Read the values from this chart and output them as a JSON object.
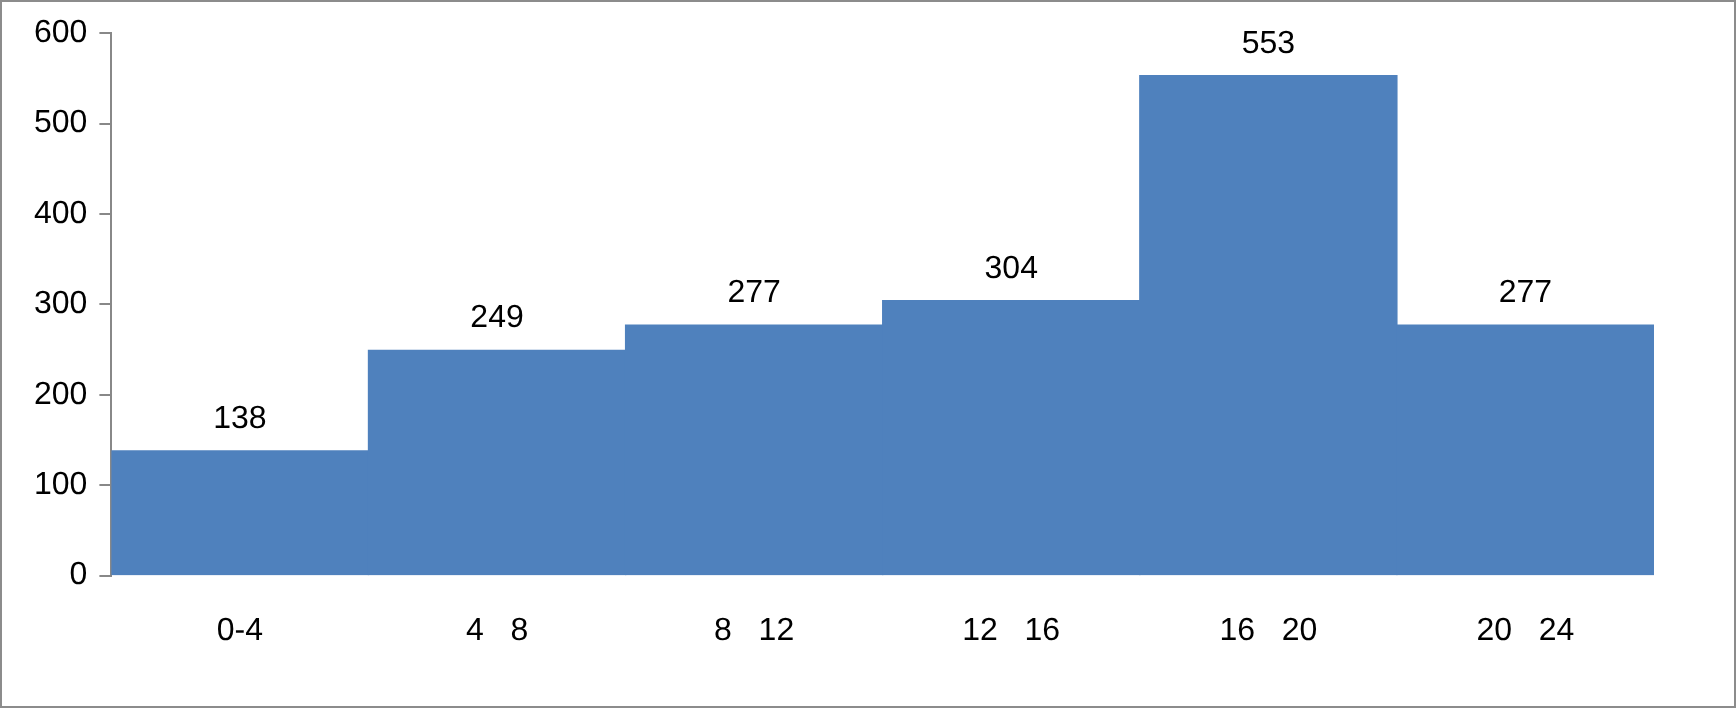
{
  "chart_data": {
    "type": "bar",
    "categories": [
      "0-4",
      "4   8",
      "8   12",
      "12   16",
      "16   20",
      "20   24"
    ],
    "values": [
      138,
      249,
      277,
      304,
      553,
      277
    ],
    "color": "#4f81bd",
    "ylim": [
      0,
      600
    ],
    "yticks": [
      0,
      100,
      200,
      300,
      400,
      500,
      600
    ],
    "grid": false,
    "legend": false,
    "data_labels": true
  }
}
